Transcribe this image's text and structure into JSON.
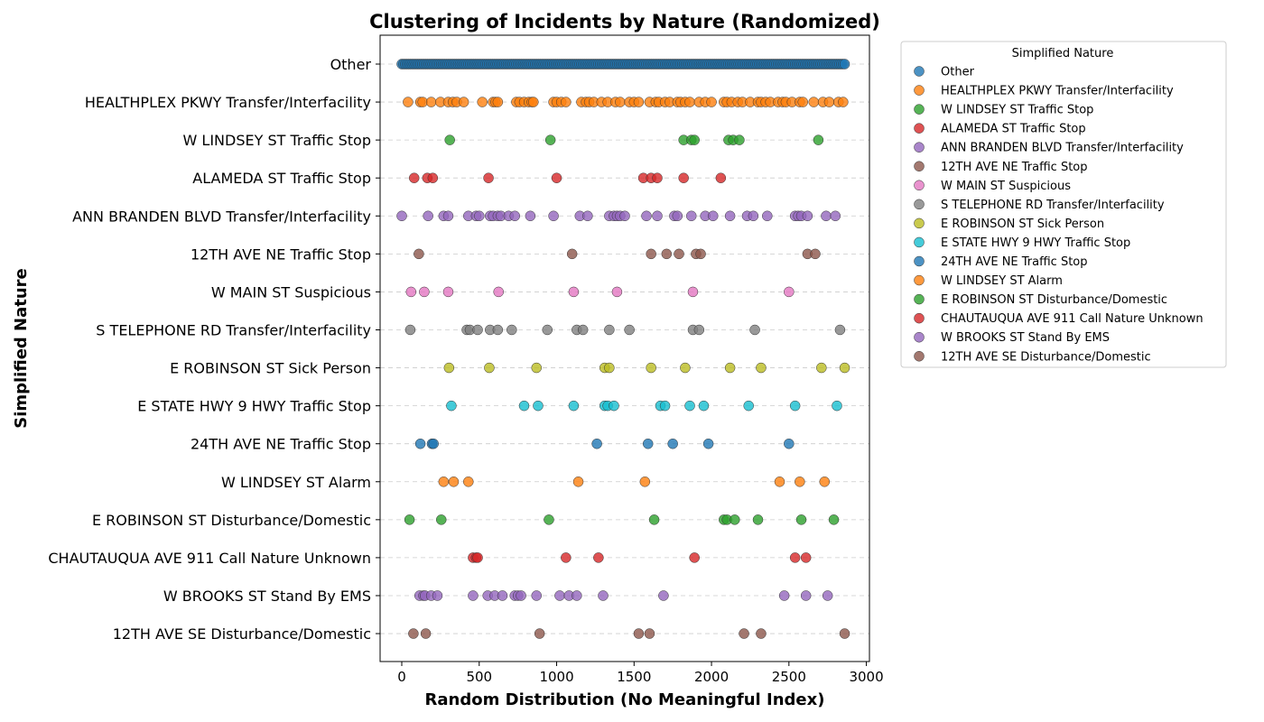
{
  "chart_data": {
    "type": "scatter",
    "title": "Clustering of Incidents by Nature (Randomized)",
    "xlabel": "Random Distribution (No Meaningful Index)",
    "ylabel": "Simplified Nature",
    "xlim": [
      -140,
      3020
    ],
    "xticks": [
      0,
      500,
      1000,
      1500,
      2000,
      2500,
      3000
    ],
    "grid": "horizontal dashed",
    "legend": {
      "title": "Simplified Nature",
      "placement": "outside-right"
    },
    "categories": [
      "Other",
      "HEALTHPLEX PKWY Transfer/Interfacility",
      "W LINDSEY ST Traffic Stop",
      "ALAMEDA ST Traffic Stop",
      "ANN BRANDEN BLVD Transfer/Interfacility",
      "12TH AVE NE Traffic Stop",
      "W MAIN ST Suspicious",
      "S TELEPHONE RD Transfer/Interfacility",
      "E ROBINSON ST Sick Person",
      "E STATE HWY 9 HWY Traffic Stop",
      "24TH AVE NE Traffic Stop",
      "W LINDSEY ST Alarm",
      "E ROBINSON ST Disturbance/Domestic",
      "CHAUTAUQUA AVE 911 Call Nature Unknown",
      "W BROOKS ST Stand By EMS",
      "12TH AVE SE Disturbance/Domestic"
    ],
    "series": [
      {
        "name": "Other",
        "color": "#1f77b4",
        "dense": true,
        "xrange": [
          0,
          2860
        ],
        "points": 260
      },
      {
        "name": "HEALTHPLEX PKWY Transfer/Interfacility",
        "color": "#ff7f0e",
        "x": [
          40,
          120,
          135,
          190,
          250,
          300,
          330,
          355,
          400,
          520,
          590,
          605,
          620,
          740,
          760,
          790,
          820,
          840,
          850,
          980,
          1000,
          1030,
          1060,
          1160,
          1190,
          1210,
          1240,
          1290,
          1330,
          1380,
          1410,
          1470,
          1500,
          1530,
          1600,
          1640,
          1660,
          1700,
          1730,
          1780,
          1800,
          1830,
          1860,
          1920,
          1960,
          2000,
          2080,
          2100,
          2130,
          2170,
          2200,
          2250,
          2300,
          2320,
          2350,
          2380,
          2430,
          2460,
          2480,
          2520,
          2570,
          2590,
          2660,
          2720,
          2760,
          2820,
          2850
        ]
      },
      {
        "name": "W LINDSEY ST Traffic Stop",
        "color": "#2ca02c",
        "x": [
          310,
          960,
          1820,
          1870,
          1890,
          2110,
          2140,
          2180,
          2690
        ]
      },
      {
        "name": "ALAMEDA ST Traffic Stop",
        "color": "#d62728",
        "x": [
          80,
          165,
          200,
          560,
          1000,
          1560,
          1610,
          1650,
          1820,
          2060
        ]
      },
      {
        "name": "ANN BRANDEN BLVD Transfer/Interfacility",
        "color": "#9467bd",
        "x": [
          0,
          170,
          270,
          300,
          430,
          480,
          500,
          570,
          590,
          620,
          640,
          690,
          730,
          830,
          980,
          1150,
          1200,
          1340,
          1370,
          1390,
          1410,
          1440,
          1580,
          1650,
          1760,
          1780,
          1870,
          1960,
          2010,
          2120,
          2230,
          2270,
          2360,
          2540,
          2560,
          2580,
          2620,
          2740,
          2800
        ]
      },
      {
        "name": "12TH AVE NE Traffic Stop",
        "color": "#8c564b",
        "x": [
          110,
          1100,
          1610,
          1710,
          1790,
          1900,
          1930,
          2620,
          2670
        ]
      },
      {
        "name": "W MAIN ST Suspicious",
        "color": "#e377c2",
        "x": [
          60,
          145,
          300,
          625,
          1110,
          1390,
          1880,
          2500
        ]
      },
      {
        "name": "S TELEPHONE RD Transfer/Interfacility",
        "color": "#7f7f7f",
        "x": [
          55,
          420,
          440,
          490,
          570,
          620,
          710,
          940,
          1130,
          1170,
          1340,
          1470,
          1880,
          1920,
          2280,
          2830
        ]
      },
      {
        "name": "E ROBINSON ST Sick Person",
        "color": "#bcbd22",
        "x": [
          305,
          565,
          870,
          1310,
          1340,
          1610,
          1830,
          2120,
          2320,
          2710,
          2860
        ]
      },
      {
        "name": "E STATE HWY 9 HWY Traffic Stop",
        "color": "#17becf",
        "x": [
          320,
          790,
          880,
          1110,
          1310,
          1330,
          1370,
          1670,
          1700,
          1860,
          1950,
          2240,
          2540,
          2810
        ]
      },
      {
        "name": "24TH AVE NE Traffic Stop",
        "color": "#1f77b4",
        "x": [
          120,
          195,
          205,
          1260,
          1590,
          1750,
          1980,
          2500
        ]
      },
      {
        "name": "W LINDSEY ST Alarm",
        "color": "#ff7f0e",
        "x": [
          270,
          335,
          430,
          1140,
          1570,
          2440,
          2570,
          2730
        ]
      },
      {
        "name": "E ROBINSON ST Disturbance/Domestic",
        "color": "#2ca02c",
        "x": [
          50,
          255,
          950,
          1630,
          2080,
          2100,
          2150,
          2300,
          2580,
          2790
        ]
      },
      {
        "name": "CHAUTAUQUA AVE 911 Call Nature Unknown",
        "color": "#d62728",
        "x": [
          460,
          480,
          490,
          1060,
          1270,
          1890,
          2540,
          2610
        ]
      },
      {
        "name": "W BROOKS ST Stand By EMS",
        "color": "#9467bd",
        "x": [
          115,
          140,
          150,
          190,
          230,
          460,
          555,
          600,
          650,
          730,
          750,
          770,
          870,
          1020,
          1080,
          1130,
          1300,
          1690,
          2470,
          2610,
          2750
        ]
      },
      {
        "name": "12TH AVE SE Disturbance/Domestic",
        "color": "#8c564b",
        "x": [
          75,
          155,
          890,
          1530,
          1600,
          2210,
          2320,
          2860
        ]
      }
    ]
  }
}
